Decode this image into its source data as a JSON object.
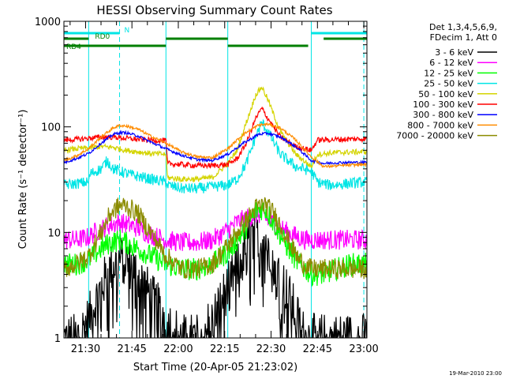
{
  "chart_data": {
    "type": "line",
    "title": "HESSI Observing Summary Count Rates",
    "xlabel": "Start Time (20-Apr-05 21:23:02)",
    "ylabel": "Count Rate (s⁻¹ detector⁻¹)",
    "yscale": "log",
    "ylim": [
      1,
      1000
    ],
    "y_ticks": [
      1,
      10,
      100,
      1000
    ],
    "x_range_minutes": [
      0,
      98
    ],
    "x_tick_minutes": [
      7,
      22,
      37,
      52,
      67,
      82,
      97
    ],
    "x_tick_labels": [
      "21:30",
      "21:45",
      "22:00",
      "22:15",
      "22:30",
      "22:45",
      "23:00"
    ],
    "legend_header": [
      "Det 1,3,4,5,6,9,",
      "FDecim 1, Att 0"
    ],
    "legend_placement": "right",
    "footer_timestamp": "19-Mar-2010 23:00",
    "flags": [
      {
        "label": "N",
        "color": "#00e5e5",
        "segments": [
          [
            0,
            18
          ],
          [
            80,
            98
          ]
        ]
      },
      {
        "label": "RD0",
        "color": "#007f00",
        "segments": [
          [
            0,
            8
          ],
          [
            33,
            53
          ],
          [
            84,
            98
          ]
        ]
      },
      {
        "label": "RD4",
        "color": "#007f00",
        "segments": [
          [
            0,
            33
          ],
          [
            53,
            79
          ]
        ]
      }
    ],
    "night_boundaries_minutes": [
      8,
      33,
      53,
      80
    ],
    "dashed_markers_minutes": [
      18,
      97
    ],
    "series": [
      {
        "name": "3 - 6 keV",
        "color": "#000000",
        "x": [
          0,
          4,
          8,
          12,
          15,
          18,
          20,
          24,
          28,
          33,
          38,
          43,
          48,
          55,
          60,
          63,
          66,
          70,
          74,
          78,
          82,
          88,
          93,
          97
        ],
        "y": [
          1.0,
          1.0,
          1.5,
          3.0,
          4.5,
          5.5,
          5.5,
          4.0,
          2.5,
          1.5,
          1.0,
          1.0,
          1.5,
          4.0,
          9.0,
          11.0,
          8.0,
          4.0,
          2.0,
          1.0,
          1.0,
          1.0,
          1.0,
          1.0
        ]
      },
      {
        "name": "6 - 12 keV",
        "color": "#ff00ff",
        "x": [
          0,
          4,
          8,
          10,
          14,
          18,
          20,
          24,
          28,
          33,
          38,
          43,
          48,
          52,
          56,
          60,
          63,
          66,
          70,
          74,
          78,
          80,
          84,
          88,
          93,
          97
        ],
        "y": [
          8.5,
          8.5,
          9.0,
          10.0,
          11.5,
          12.5,
          12.0,
          11.0,
          9.5,
          8.5,
          8.0,
          8.0,
          8.5,
          10.0,
          12.5,
          14.0,
          15.0,
          13.0,
          11.0,
          9.5,
          8.5,
          8.5,
          8.5,
          8.5,
          8.5,
          8.5
        ]
      },
      {
        "name": "12 - 25 keV",
        "color": "#00ff00",
        "x": [
          0,
          4,
          8,
          12,
          15,
          18,
          20,
          24,
          28,
          33,
          38,
          43,
          48,
          53,
          58,
          62,
          65,
          68,
          72,
          76,
          80,
          84,
          88,
          93,
          97
        ],
        "y": [
          5.0,
          5.0,
          5.5,
          7.0,
          8.0,
          8.5,
          8.0,
          7.0,
          6.0,
          5.0,
          4.5,
          4.5,
          5.0,
          6.5,
          10.0,
          16.0,
          17.0,
          12.0,
          7.5,
          5.0,
          4.0,
          4.0,
          4.5,
          5.0,
          5.0
        ]
      },
      {
        "name": "25 - 50 keV",
        "color": "#00e5e5",
        "x": [
          0,
          4,
          8,
          8.5,
          12,
          14,
          16,
          18,
          22,
          28,
          33,
          33.5,
          38,
          43,
          48,
          53,
          56,
          59,
          62,
          64,
          66,
          70,
          75,
          80,
          82,
          86,
          92,
          97
        ],
        "y": [
          28,
          29,
          30,
          36,
          40,
          48,
          40,
          38,
          35,
          32,
          30,
          28,
          26,
          26,
          27,
          28,
          32,
          45,
          80,
          110,
          90,
          55,
          42,
          38,
          30,
          28,
          29,
          30
        ]
      },
      {
        "name": "50 - 100 keV",
        "color": "#d4d400",
        "x": [
          0,
          4,
          8,
          12,
          16,
          18,
          20,
          24,
          28,
          33,
          33.5,
          38,
          43,
          48,
          53,
          56,
          59,
          62,
          64,
          66,
          70,
          75,
          80,
          82,
          88,
          97
        ],
        "y": [
          60,
          62,
          63,
          65,
          64,
          62,
          60,
          58,
          56,
          55,
          33,
          32,
          32,
          33,
          45,
          60,
          110,
          200,
          240,
          180,
          90,
          55,
          42,
          55,
          57,
          58
        ]
      },
      {
        "name": "100 - 300 keV",
        "color": "#ff0000",
        "x": [
          0,
          4,
          8,
          12,
          16,
          20,
          24,
          28,
          33,
          33.5,
          38,
          43,
          48,
          53,
          56,
          59,
          62,
          64,
          66,
          70,
          75,
          80,
          82,
          88,
          97
        ],
        "y": [
          75,
          76,
          78,
          80,
          80,
          78,
          76,
          75,
          74,
          45,
          44,
          43,
          43,
          44,
          50,
          70,
          120,
          150,
          120,
          80,
          65,
          60,
          75,
          76,
          77
        ]
      },
      {
        "name": "300 - 800 keV",
        "color": "#0000ff",
        "x": [
          0,
          4,
          8,
          12,
          16,
          18,
          20,
          24,
          28,
          33,
          38,
          43,
          48,
          53,
          58,
          63,
          66,
          70,
          75,
          80,
          84,
          90,
          97
        ],
        "y": [
          46,
          50,
          56,
          70,
          85,
          88,
          88,
          82,
          72,
          62,
          54,
          49,
          48,
          55,
          70,
          85,
          87,
          80,
          65,
          48,
          45,
          46,
          46
        ]
      },
      {
        "name": "800 - 7000 keV",
        "color": "#ff8c00",
        "x": [
          0,
          4,
          8,
          12,
          16,
          18,
          20,
          24,
          28,
          33,
          38,
          43,
          48,
          53,
          58,
          63,
          66,
          70,
          75,
          80,
          84,
          90,
          97
        ],
        "y": [
          48,
          53,
          62,
          80,
          98,
          103,
          102,
          95,
          82,
          70,
          58,
          52,
          51,
          62,
          85,
          104,
          106,
          98,
          75,
          52,
          42,
          43,
          44
        ]
      },
      {
        "name": "7000 - 20000 keV",
        "color": "#8b8b00",
        "x": [
          0,
          4,
          8,
          12,
          15,
          18,
          20,
          24,
          28,
          33,
          38,
          43,
          48,
          53,
          58,
          62,
          65,
          68,
          72,
          76,
          80,
          84,
          90,
          97
        ],
        "y": [
          4.5,
          5.0,
          6.0,
          10.0,
          15.0,
          18.0,
          18.0,
          15.0,
          10.0,
          6.0,
          4.5,
          4.5,
          5.0,
          7.5,
          12.0,
          17.0,
          18.5,
          15.0,
          9.0,
          5.5,
          4.5,
          4.5,
          4.5,
          4.5
        ]
      }
    ]
  }
}
